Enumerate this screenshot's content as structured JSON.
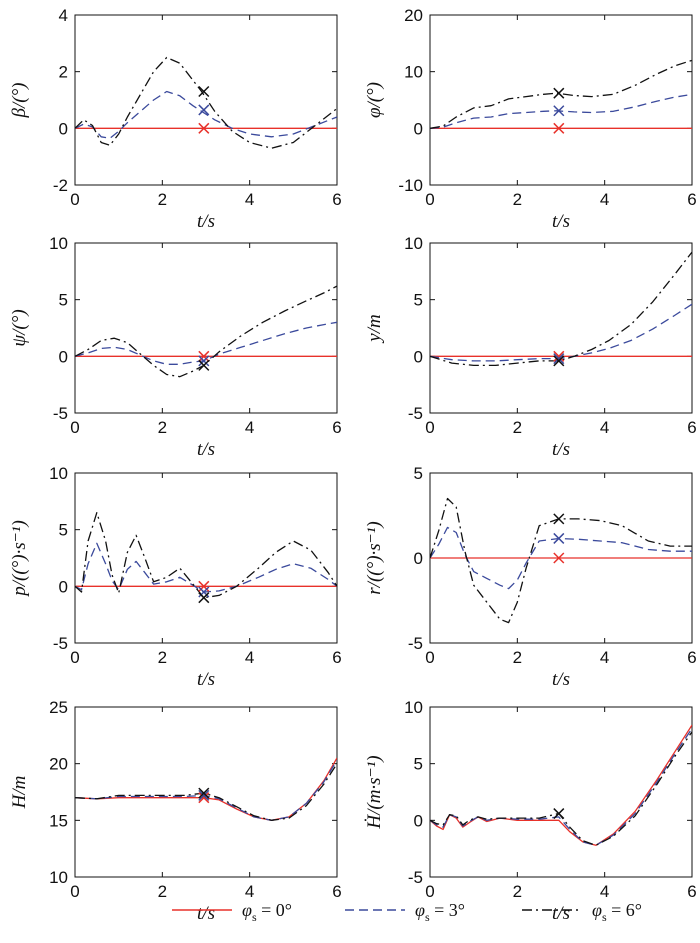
{
  "legend": {
    "items": [
      {
        "symbol": "φ",
        "sub": "s",
        "value": " = 0°",
        "color": "#e8312a",
        "dash": ""
      },
      {
        "symbol": "φ",
        "sub": "s",
        "value": " = 3°",
        "color": "#3b4a9c",
        "dash": "9,5"
      },
      {
        "symbol": "φ",
        "sub": "s",
        "value": " = 6°",
        "color": "#111111",
        "dash": "10,4,2,4"
      }
    ]
  },
  "chart_data": [
    {
      "type": "line",
      "xlabel": "t/s",
      "ylabel": "β/(°)",
      "xlim": [
        0,
        6
      ],
      "ylim": [
        -2,
        4
      ],
      "yticks": [
        -2,
        0,
        2,
        4
      ],
      "xticks": [
        0,
        2,
        4,
        6
      ],
      "series": [
        {
          "name": "φs = 0°",
          "x": [
            0,
            6
          ],
          "y": [
            0,
            0
          ]
        },
        {
          "name": "φs = 3°",
          "x": [
            0,
            0.2,
            0.4,
            0.6,
            0.8,
            1.0,
            1.2,
            1.5,
            1.8,
            2.1,
            2.4,
            2.7,
            2.9,
            3.2,
            3.6,
            4.0,
            4.5,
            5.0,
            5.5,
            6.0
          ],
          "y": [
            0,
            0.15,
            0.05,
            -0.3,
            -0.35,
            -0.1,
            0.2,
            0.6,
            1.0,
            1.3,
            1.15,
            0.8,
            0.6,
            0.3,
            0,
            -0.2,
            -0.3,
            -0.2,
            0.1,
            0.4
          ]
        },
        {
          "name": "φs = 6°",
          "x": [
            0,
            0.2,
            0.4,
            0.6,
            0.8,
            1.0,
            1.2,
            1.5,
            1.8,
            2.1,
            2.4,
            2.7,
            2.9,
            3.2,
            3.6,
            4.0,
            4.5,
            5.0,
            5.5,
            6.0
          ],
          "y": [
            0,
            0.3,
            0.1,
            -0.5,
            -0.6,
            -0.2,
            0.4,
            1.2,
            2.0,
            2.5,
            2.3,
            1.7,
            1.3,
            0.6,
            -0.1,
            -0.5,
            -0.7,
            -0.5,
            0.1,
            0.7
          ]
        }
      ],
      "markers": [
        {
          "x": 2.95,
          "y": 0,
          "series": 0
        },
        {
          "x": 2.95,
          "y": 0.65,
          "series": 1
        },
        {
          "x": 2.95,
          "y": 1.3,
          "series": 2
        }
      ]
    },
    {
      "type": "line",
      "xlabel": "t/s",
      "ylabel": "φ/(°)",
      "xlim": [
        0,
        6
      ],
      "ylim": [
        -10,
        20
      ],
      "yticks": [
        -10,
        0,
        10,
        20
      ],
      "xticks": [
        0,
        2,
        4,
        6
      ],
      "series": [
        {
          "name": "φs = 0°",
          "x": [
            0,
            6
          ],
          "y": [
            0,
            0
          ]
        },
        {
          "name": "φs = 3°",
          "x": [
            0,
            0.3,
            0.6,
            1.0,
            1.4,
            1.8,
            2.2,
            2.6,
            2.9,
            3.3,
            3.7,
            4.2,
            4.7,
            5.2,
            5.6,
            6.0
          ],
          "y": [
            0,
            0.2,
            1.0,
            1.8,
            2.0,
            2.6,
            2.8,
            3.0,
            3.1,
            2.9,
            2.8,
            3.0,
            3.8,
            4.8,
            5.5,
            6.0
          ]
        },
        {
          "name": "φs = 6°",
          "x": [
            0,
            0.3,
            0.6,
            1.0,
            1.4,
            1.8,
            2.2,
            2.6,
            2.9,
            3.3,
            3.7,
            4.2,
            4.7,
            5.2,
            5.6,
            6.0
          ],
          "y": [
            0,
            0.4,
            2.0,
            3.6,
            4.0,
            5.2,
            5.6,
            6.0,
            6.2,
            5.8,
            5.6,
            6.0,
            7.6,
            9.6,
            11.0,
            12.0
          ]
        }
      ],
      "markers": [
        {
          "x": 2.95,
          "y": 0,
          "series": 0
        },
        {
          "x": 2.95,
          "y": 3.1,
          "series": 1
        },
        {
          "x": 2.95,
          "y": 6.2,
          "series": 2
        }
      ]
    },
    {
      "type": "line",
      "xlabel": "t/s",
      "ylabel": "ψ/(°)",
      "xlim": [
        0,
        6
      ],
      "ylim": [
        -5,
        10
      ],
      "yticks": [
        -5,
        0,
        5,
        10
      ],
      "xticks": [
        0,
        2,
        4,
        6
      ],
      "series": [
        {
          "name": "φs = 0°",
          "x": [
            0,
            6
          ],
          "y": [
            0,
            0
          ]
        },
        {
          "name": "φs = 3°",
          "x": [
            0,
            0.3,
            0.6,
            0.9,
            1.2,
            1.5,
            1.8,
            2.1,
            2.4,
            2.7,
            2.95,
            3.3,
            3.8,
            4.3,
            4.8,
            5.3,
            5.7,
            6.0
          ],
          "y": [
            0,
            0.3,
            0.7,
            0.8,
            0.6,
            0.1,
            -0.4,
            -0.7,
            -0.7,
            -0.5,
            -0.4,
            0.2,
            0.8,
            1.4,
            2.0,
            2.5,
            2.8,
            3.0
          ]
        },
        {
          "name": "φs = 6°",
          "x": [
            0,
            0.3,
            0.6,
            0.9,
            1.2,
            1.5,
            1.8,
            2.1,
            2.4,
            2.7,
            2.95,
            3.3,
            3.8,
            4.3,
            4.8,
            5.3,
            5.7,
            6.0
          ],
          "y": [
            0,
            0.6,
            1.4,
            1.6,
            1.2,
            0.2,
            -0.8,
            -1.6,
            -1.8,
            -1.3,
            -0.8,
            0.4,
            1.8,
            3.0,
            4.0,
            4.9,
            5.6,
            6.2
          ]
        }
      ],
      "markers": [
        {
          "x": 2.95,
          "y": 0,
          "series": 0
        },
        {
          "x": 2.95,
          "y": -0.4,
          "series": 1
        },
        {
          "x": 2.95,
          "y": -0.8,
          "series": 2
        }
      ]
    },
    {
      "type": "line",
      "xlabel": "t/s",
      "ylabel": "y/m",
      "xlim": [
        0,
        6
      ],
      "ylim": [
        -5,
        10
      ],
      "yticks": [
        -5,
        0,
        5,
        10
      ],
      "xticks": [
        0,
        2,
        4,
        6
      ],
      "series": [
        {
          "name": "φs = 0°",
          "x": [
            0,
            6
          ],
          "y": [
            0,
            0
          ]
        },
        {
          "name": "φs = 3°",
          "x": [
            0,
            0.5,
            1.0,
            1.5,
            2.0,
            2.5,
            2.95,
            3.3,
            3.7,
            4.1,
            4.6,
            5.1,
            5.6,
            6.0
          ],
          "y": [
            0,
            -0.3,
            -0.4,
            -0.4,
            -0.3,
            -0.2,
            -0.2,
            0,
            0.3,
            0.7,
            1.4,
            2.4,
            3.6,
            4.6
          ]
        },
        {
          "name": "φs = 6°",
          "x": [
            0,
            0.5,
            1.0,
            1.5,
            2.0,
            2.5,
            2.95,
            3.3,
            3.7,
            4.1,
            4.6,
            5.1,
            5.6,
            6.0
          ],
          "y": [
            0,
            -0.6,
            -0.8,
            -0.8,
            -0.6,
            -0.4,
            -0.4,
            0,
            0.6,
            1.4,
            2.8,
            4.8,
            7.2,
            9.2
          ]
        }
      ],
      "markers": [
        {
          "x": 2.95,
          "y": 0,
          "series": 0
        },
        {
          "x": 2.95,
          "y": -0.2,
          "series": 1
        },
        {
          "x": 2.95,
          "y": -0.4,
          "series": 2
        }
      ]
    },
    {
      "type": "line",
      "xlabel": "t/s",
      "ylabel": "p/((°)·s⁻¹)",
      "xlim": [
        0,
        6
      ],
      "ylim": [
        -5,
        10
      ],
      "yticks": [
        -5,
        0,
        5,
        10
      ],
      "xticks": [
        0,
        2,
        4,
        6
      ],
      "series": [
        {
          "name": "φs = 0°",
          "x": [
            0,
            6
          ],
          "y": [
            0,
            0
          ]
        },
        {
          "name": "φs = 3°",
          "x": [
            0,
            0.15,
            0.3,
            0.5,
            0.7,
            0.85,
            1.0,
            1.2,
            1.4,
            1.6,
            1.8,
            2.1,
            2.4,
            2.7,
            2.95,
            3.3,
            3.7,
            4.2,
            4.6,
            5.0,
            5.4,
            5.8,
            6.0
          ],
          "y": [
            0,
            -0.3,
            2.0,
            3.8,
            2.0,
            0.5,
            -0.3,
            1.5,
            2.2,
            1.2,
            0.2,
            0.4,
            0.8,
            0.1,
            -0.5,
            -0.4,
            0,
            0.8,
            1.5,
            2.0,
            1.6,
            0.6,
            0
          ]
        },
        {
          "name": "φs = 6°",
          "x": [
            0,
            0.15,
            0.3,
            0.5,
            0.7,
            0.85,
            1.0,
            1.2,
            1.4,
            1.6,
            1.8,
            2.1,
            2.4,
            2.7,
            2.95,
            3.3,
            3.7,
            4.2,
            4.6,
            5.0,
            5.4,
            5.8,
            6.0
          ],
          "y": [
            0,
            -0.5,
            4.0,
            6.5,
            4.0,
            1.0,
            -0.6,
            3.0,
            4.5,
            2.5,
            0.4,
            0.8,
            1.6,
            0.2,
            -1.0,
            -0.8,
            0,
            1.6,
            3.0,
            4.0,
            3.2,
            1.2,
            0
          ]
        }
      ],
      "markers": [
        {
          "x": 2.95,
          "y": 0,
          "series": 0
        },
        {
          "x": 2.95,
          "y": -0.5,
          "series": 1
        },
        {
          "x": 2.95,
          "y": -1.0,
          "series": 2
        }
      ]
    },
    {
      "type": "line",
      "xlabel": "t/s",
      "ylabel": "r/((°)·s⁻¹)",
      "xlim": [
        0,
        6
      ],
      "ylim": [
        -5,
        5
      ],
      "yticks": [
        -5,
        0,
        5
      ],
      "xticks": [
        0,
        2,
        4,
        6
      ],
      "series": [
        {
          "name": "φs = 0°",
          "x": [
            0,
            6
          ],
          "y": [
            0,
            0
          ]
        },
        {
          "name": "φs = 3°",
          "x": [
            0,
            0.2,
            0.4,
            0.6,
            0.8,
            1.0,
            1.3,
            1.6,
            1.8,
            2.0,
            2.2,
            2.5,
            2.95,
            3.4,
            3.9,
            4.4,
            5.0,
            5.5,
            6.0
          ],
          "y": [
            0,
            0.8,
            1.8,
            1.5,
            0.2,
            -0.8,
            -1.2,
            -1.6,
            -1.8,
            -1.3,
            -0.3,
            1.0,
            1.15,
            1.1,
            1.0,
            0.9,
            0.5,
            0.4,
            0.4
          ]
        },
        {
          "name": "φs = 6°",
          "x": [
            0,
            0.2,
            0.4,
            0.6,
            0.8,
            1.0,
            1.3,
            1.6,
            1.8,
            2.0,
            2.2,
            2.5,
            2.95,
            3.4,
            3.9,
            4.4,
            5.0,
            5.5,
            6.0
          ],
          "y": [
            0,
            1.6,
            3.5,
            3.0,
            0.4,
            -1.6,
            -2.6,
            -3.6,
            -3.8,
            -2.6,
            -0.6,
            1.9,
            2.3,
            2.3,
            2.2,
            1.9,
            1.0,
            0.7,
            0.7
          ]
        }
      ],
      "markers": [
        {
          "x": 2.95,
          "y": 0,
          "series": 0
        },
        {
          "x": 2.95,
          "y": 1.15,
          "series": 1
        },
        {
          "x": 2.95,
          "y": 2.3,
          "series": 2
        }
      ]
    },
    {
      "type": "line",
      "xlabel": "t/s",
      "ylabel": "H/m",
      "xlim": [
        0,
        6
      ],
      "ylim": [
        10,
        25
      ],
      "yticks": [
        10,
        15,
        20,
        25
      ],
      "xticks": [
        0,
        2,
        4,
        6
      ],
      "series": [
        {
          "name": "φs = 0°",
          "x": [
            0,
            0.5,
            1.0,
            1.5,
            2.0,
            2.5,
            2.95,
            3.3,
            3.7,
            4.1,
            4.5,
            4.9,
            5.3,
            5.7,
            6.0
          ],
          "y": [
            17,
            16.9,
            17,
            17,
            17,
            17,
            17,
            16.8,
            16.0,
            15.3,
            15.0,
            15.3,
            16.5,
            18.5,
            20.5
          ]
        },
        {
          "name": "φs = 3°",
          "x": [
            0,
            0.5,
            1.0,
            1.5,
            2.0,
            2.5,
            2.95,
            3.3,
            3.7,
            4.1,
            4.5,
            4.9,
            5.3,
            5.7,
            6.0
          ],
          "y": [
            17,
            16.9,
            17.1,
            17.1,
            17.1,
            17.1,
            17.2,
            16.9,
            16.1,
            15.3,
            15.0,
            15.3,
            16.5,
            18.4,
            20.3
          ]
        },
        {
          "name": "φs = 6°",
          "x": [
            0,
            0.5,
            1.0,
            1.5,
            2.0,
            2.5,
            2.95,
            3.3,
            3.7,
            4.1,
            4.5,
            4.9,
            5.3,
            5.7,
            6.0
          ],
          "y": [
            17,
            16.9,
            17.2,
            17.2,
            17.2,
            17.2,
            17.4,
            17.0,
            16.2,
            15.4,
            15.0,
            15.2,
            16.3,
            18.2,
            20.0
          ]
        }
      ],
      "markers": [
        {
          "x": 2.95,
          "y": 17.0,
          "series": 0
        },
        {
          "x": 2.95,
          "y": 17.2,
          "series": 1
        },
        {
          "x": 2.95,
          "y": 17.4,
          "series": 2
        }
      ]
    },
    {
      "type": "line",
      "xlabel": "t/s",
      "ylabel": "Ḣ/(m·s⁻¹)",
      "xlim": [
        0,
        6
      ],
      "ylim": [
        -5,
        10
      ],
      "yticks": [
        -5,
        0,
        5,
        10
      ],
      "xticks": [
        0,
        2,
        4,
        6
      ],
      "series": [
        {
          "name": "φs = 0°",
          "x": [
            0,
            0.15,
            0.3,
            0.45,
            0.6,
            0.75,
            0.9,
            1.1,
            1.3,
            1.6,
            2.0,
            2.5,
            2.95,
            3.2,
            3.5,
            3.8,
            4.2,
            4.7,
            5.2,
            5.6,
            6.0
          ],
          "y": [
            0,
            -0.5,
            -0.8,
            0.5,
            0.2,
            -0.6,
            -0.2,
            0.3,
            -0.1,
            0.2,
            0,
            0,
            0,
            -1.0,
            -1.9,
            -2.2,
            -1.2,
            0.8,
            3.6,
            6.0,
            8.4
          ]
        },
        {
          "name": "φs = 3°",
          "x": [
            0,
            0.15,
            0.3,
            0.45,
            0.6,
            0.75,
            0.9,
            1.1,
            1.3,
            1.6,
            2.0,
            2.5,
            2.95,
            3.2,
            3.5,
            3.8,
            4.2,
            4.7,
            5.2,
            5.6,
            6.0
          ],
          "y": [
            0,
            -0.4,
            -0.6,
            0.5,
            0.3,
            -0.5,
            -0.1,
            0.3,
            0,
            0.2,
            0.1,
            0.1,
            0.3,
            -0.8,
            -1.9,
            -2.2,
            -1.3,
            0.6,
            3.4,
            5.8,
            8.1
          ]
        },
        {
          "name": "φs = 6°",
          "x": [
            0,
            0.15,
            0.3,
            0.45,
            0.6,
            0.75,
            0.9,
            1.1,
            1.3,
            1.6,
            2.0,
            2.5,
            2.95,
            3.2,
            3.5,
            3.8,
            4.2,
            4.7,
            5.2,
            5.6,
            6.0
          ],
          "y": [
            0,
            -0.3,
            -0.4,
            0.5,
            0.4,
            -0.4,
            0,
            0.3,
            0.1,
            0.2,
            0.2,
            0.2,
            0.6,
            -0.6,
            -1.8,
            -2.2,
            -1.4,
            0.4,
            3.2,
            5.6,
            7.8
          ]
        }
      ],
      "markers": [
        {
          "x": 2.95,
          "y": 0.6,
          "series": 2
        }
      ]
    }
  ]
}
